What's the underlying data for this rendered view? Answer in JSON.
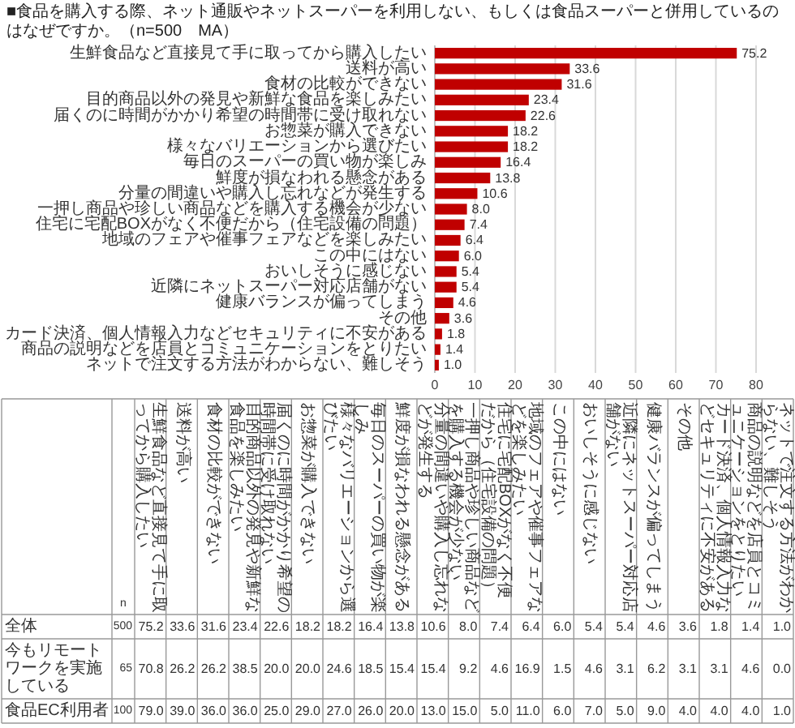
{
  "chart_data": [
    {
      "type": "bar",
      "orientation": "horizontal",
      "title": "■食品を購入する際、ネット通販やネットスーパーを利用しない、もしくは食品スーパーと併用しているのはなぜですか。（n=500　MA）",
      "categories": [
        "生鮮食品など直接見て手に取ってから購入したい",
        "送料が高い",
        "食材の比較ができない",
        "目的商品以外の発見や新鮮な食品を楽しみたい",
        "届くのに時間がかかり希望の時間帯に受け取れない",
        "お惣菜が購入できない",
        "様々なバリエーションから選びたい",
        "毎日のスーパーの買い物が楽しみ",
        "鮮度が損なわれる懸念がある",
        "分量の間違いや購入し忘れなどが発生する",
        "一押し商品や珍しい商品などを購入する機会が少ない",
        "住宅に宅配BOXがなく不便だから（住宅設備の問題）",
        "地域のフェアや催事フェアなどを楽しみたい",
        "この中にはない",
        "おいしそうに感じない",
        "近隣にネットスーパー対応店舗がない",
        "健康バランスが偏ってしまう",
        "その他",
        "カード決済、個人情報入力などセキュリティに不安がある",
        "商品の説明などを店員とコミュニケーションをとりたい",
        "ネットで注文する方法がわからない、難しそう"
      ],
      "values": [
        75.2,
        33.6,
        31.6,
        23.4,
        22.6,
        18.2,
        18.2,
        16.4,
        13.8,
        10.6,
        8.0,
        7.4,
        6.4,
        6.0,
        5.4,
        5.4,
        4.6,
        3.6,
        1.8,
        1.4,
        1.0
      ],
      "value_labels": [
        "75.2",
        "33.6",
        "31.6",
        "23.4",
        "22.6",
        "18.2",
        "18.2",
        "16.4",
        "13.8",
        "10.6",
        "8.0",
        "7.4",
        "6.4",
        "6.0",
        "5.4",
        "5.4",
        "4.6",
        "3.6",
        "1.8",
        "1.4",
        "1.0"
      ],
      "color": "#c00000",
      "xlim": [
        0,
        80
      ],
      "xticks": [
        0,
        10,
        20,
        30,
        40,
        50,
        60,
        70,
        80
      ],
      "grid": "x"
    },
    {
      "type": "heatmap",
      "categories": [
        "n",
        "生鮮食品など直接見て手に取ってから購入したい",
        "送料が高い",
        "食材の比較ができない",
        "目的商品以外の発見や新鮮な食品を楽しみたい",
        "届くのに時間がかかり希望の時間帯に受け取れない",
        "お惣菜が購入できない",
        "様々なバリエーションから選びたい",
        "毎日のスーパーの買い物が楽しみ",
        "鮮度が損なわれる懸念がある",
        "分量の間違いや購入し忘れなどが発生する",
        "一押し商品や珍しい商品などを購入する機会が少ない",
        "住宅に宅配BOXがなく不便だから（住宅設備の問題）",
        "地域のフェアや催事フェアなどを楽しみたい",
        "この中にはない",
        "おいしそうに感じない",
        "近隣にネットスーパー対応店舗がない",
        "健康バランスが偏ってしまう",
        "その他",
        "カード決済、個人情報入力などセキュリティに不安がある",
        "商品の説明などを店員とコミュニケーションをとりたい",
        "ネットで注文する方法がわからない、難しそう"
      ],
      "y_categories": [
        "全体",
        "今もリモートワークを実施している",
        "食品EC利用者"
      ],
      "cells": [
        [
          500,
          75.2,
          33.6,
          31.6,
          23.4,
          22.6,
          18.2,
          18.2,
          16.4,
          13.8,
          10.6,
          8.0,
          7.4,
          6.4,
          6.0,
          5.4,
          5.4,
          4.6,
          3.6,
          1.8,
          1.4,
          1.0
        ],
        [
          65,
          70.8,
          26.2,
          26.2,
          38.5,
          20.0,
          20.0,
          24.6,
          18.5,
          15.4,
          15.4,
          9.2,
          4.6,
          16.9,
          1.5,
          4.6,
          3.1,
          6.2,
          3.1,
          3.1,
          4.6,
          0.0
        ],
        [
          100,
          79.0,
          39.0,
          36.0,
          36.0,
          25.0,
          29.0,
          27.0,
          26.0,
          20.0,
          13.0,
          15.0,
          5.0,
          11.0,
          6.0,
          7.0,
          5.0,
          9.0,
          4.0,
          4.0,
          4.0,
          1.0
        ]
      ],
      "cell_labels": [
        [
          "500",
          "75.2",
          "33.6",
          "31.6",
          "23.4",
          "22.6",
          "18.2",
          "18.2",
          "16.4",
          "13.8",
          "10.6",
          "8.0",
          "7.4",
          "6.4",
          "6.0",
          "5.4",
          "5.4",
          "4.6",
          "3.6",
          "1.8",
          "1.4",
          "1.0"
        ],
        [
          "65",
          "70.8",
          "26.2",
          "26.2",
          "38.5",
          "20.0",
          "20.0",
          "24.6",
          "18.5",
          "15.4",
          "15.4",
          "9.2",
          "4.6",
          "16.9",
          "1.5",
          "4.6",
          "3.1",
          "6.2",
          "3.1",
          "3.1",
          "4.6",
          "0.0"
        ],
        [
          "100",
          "79.0",
          "39.0",
          "36.0",
          "36.0",
          "25.0",
          "29.0",
          "27.0",
          "26.0",
          "20.0",
          "13.0",
          "15.0",
          "5.0",
          "11.0",
          "6.0",
          "7.0",
          "5.0",
          "9.0",
          "4.0",
          "4.0",
          "4.0",
          "1.0"
        ]
      ]
    }
  ]
}
